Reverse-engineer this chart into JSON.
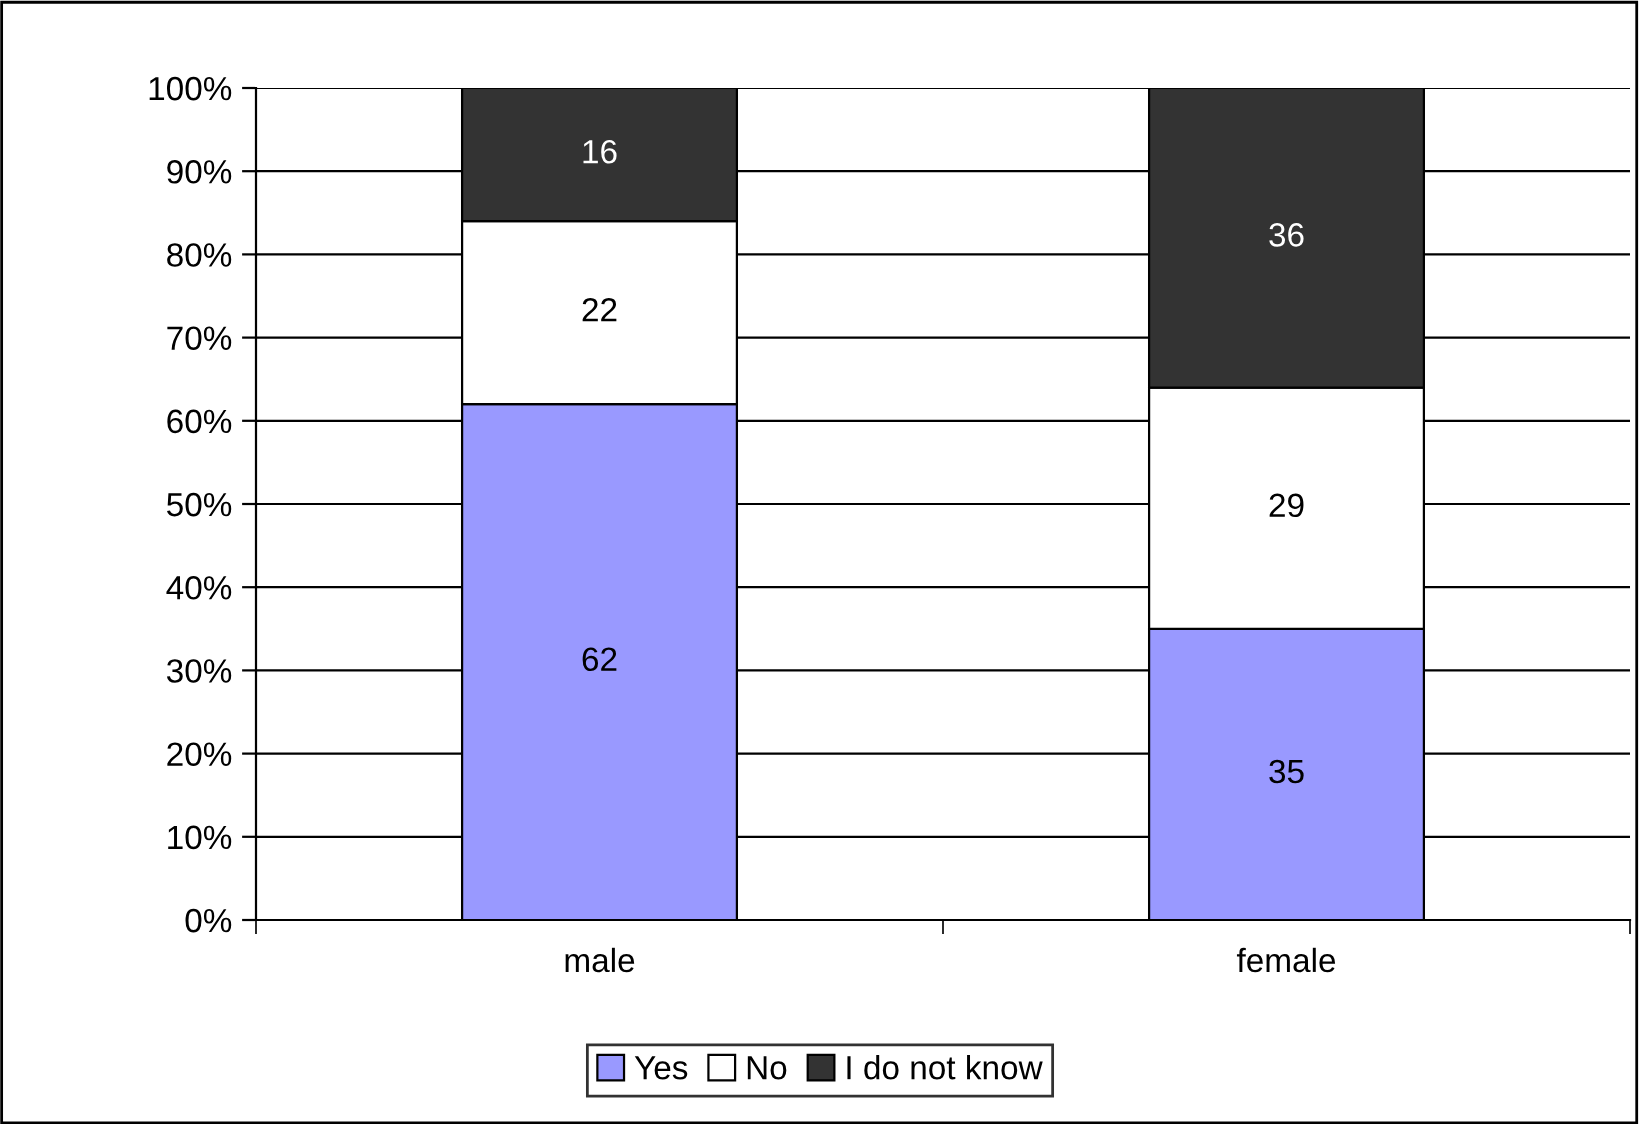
{
  "chart_data": {
    "type": "bar",
    "stacked": true,
    "categories": [
      "male",
      "female"
    ],
    "series": [
      {
        "name": "Yes",
        "color": "#9999ff",
        "values": [
          62,
          35
        ]
      },
      {
        "name": "No",
        "color": "#ffffff",
        "values": [
          22,
          29
        ]
      },
      {
        "name": "I do not know",
        "color": "#333333",
        "values": [
          16,
          36
        ]
      }
    ],
    "ylim": [
      0,
      100
    ],
    "yticks": [
      {
        "value": 0,
        "label": "0%"
      },
      {
        "value": 10,
        "label": "10%"
      },
      {
        "value": 20,
        "label": "20%"
      },
      {
        "value": 30,
        "label": "30%"
      },
      {
        "value": 40,
        "label": "40%"
      },
      {
        "value": 50,
        "label": "50%"
      },
      {
        "value": 60,
        "label": "60%"
      },
      {
        "value": 70,
        "label": "70%"
      },
      {
        "value": 80,
        "label": "80%"
      },
      {
        "value": 90,
        "label": "90%"
      },
      {
        "value": 100,
        "label": "100%"
      }
    ],
    "grid": "y",
    "legend": "bottom",
    "data_labels": true
  }
}
